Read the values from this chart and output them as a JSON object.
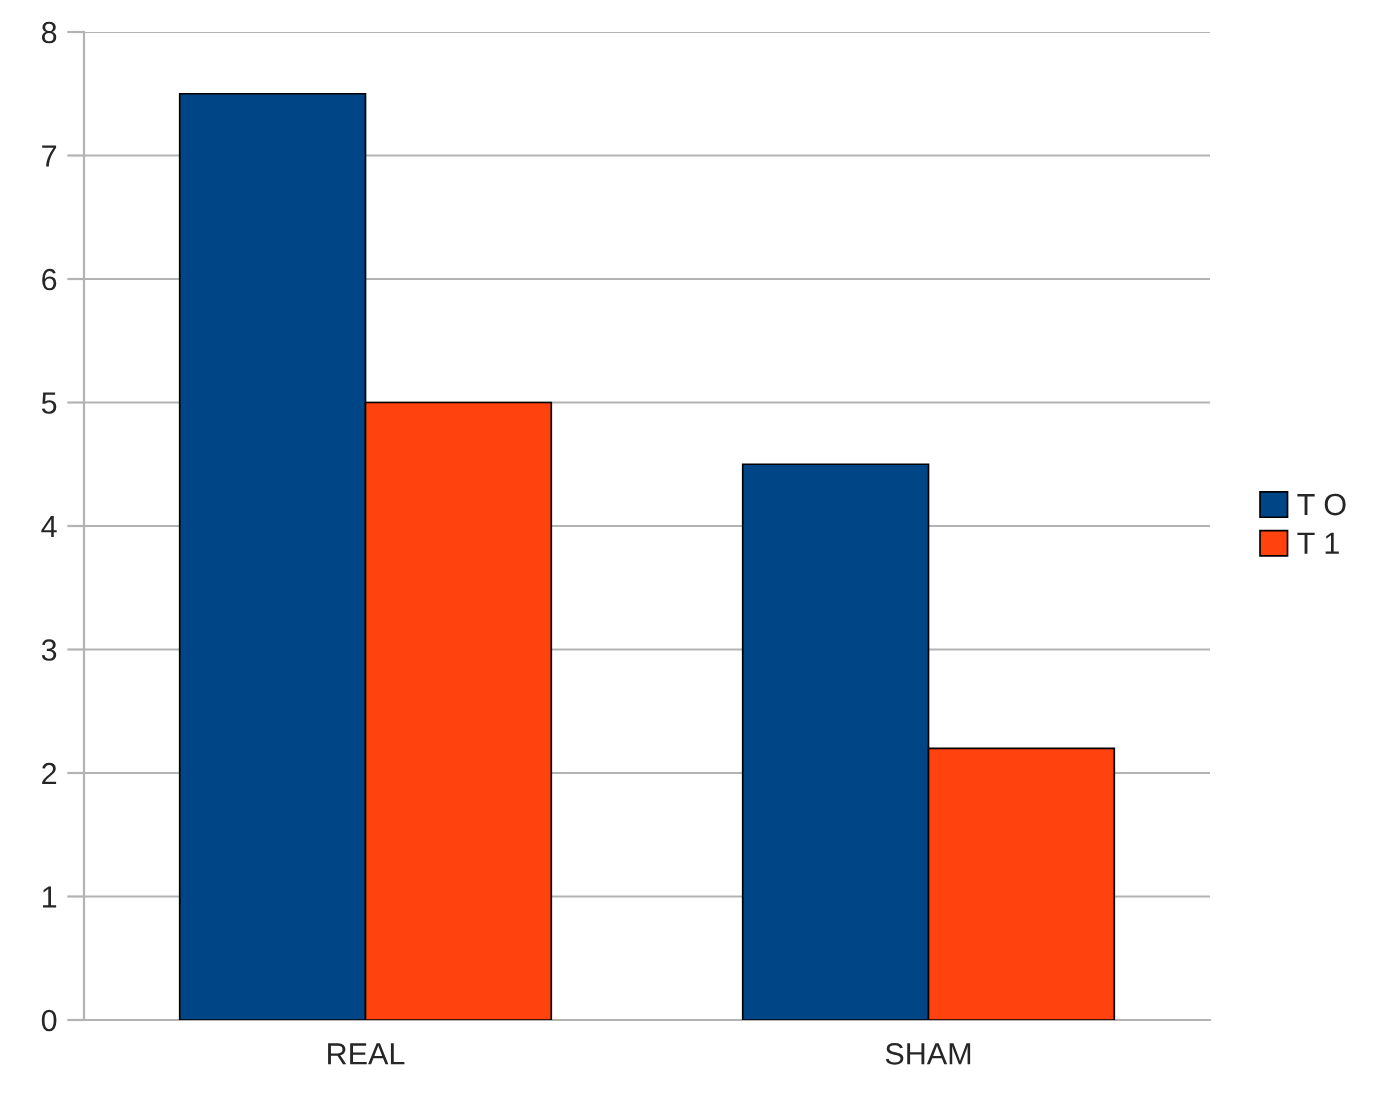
{
  "chart_data": {
    "type": "bar",
    "categories": [
      "REAL",
      "SHAM"
    ],
    "series": [
      {
        "name": "T O",
        "color": "#004586",
        "values": [
          7.5,
          4.5
        ]
      },
      {
        "name": "T 1",
        "color": "#ff420e",
        "values": [
          5.0,
          2.2
        ]
      }
    ],
    "ylim": [
      0,
      8
    ],
    "yticks": [
      0,
      1,
      2,
      3,
      4,
      5,
      6,
      7,
      8
    ],
    "grid": "y",
    "legend": "right"
  }
}
